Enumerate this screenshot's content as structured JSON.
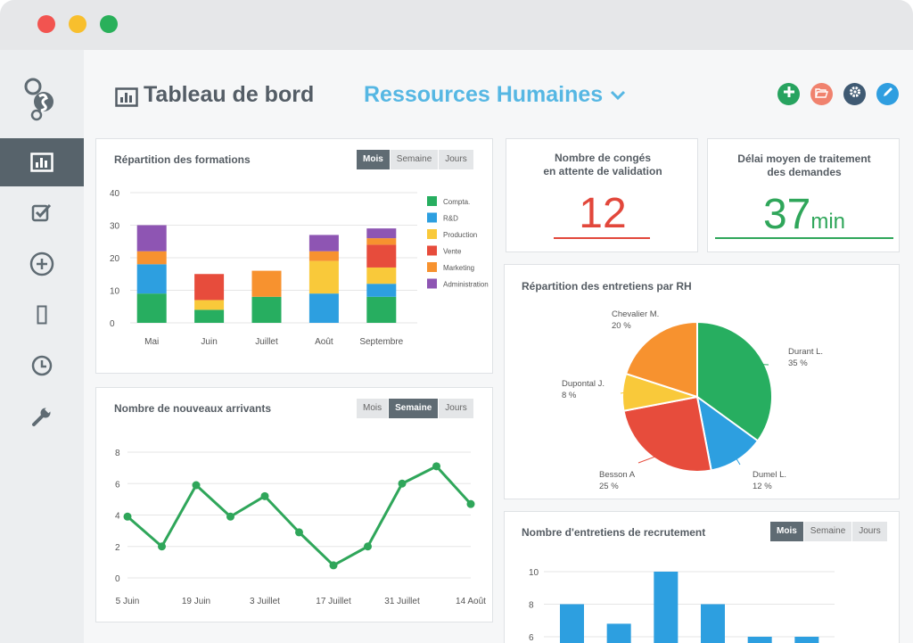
{
  "window": {
    "controls": [
      "close",
      "minimize",
      "maximize"
    ]
  },
  "sidebar": {
    "items": [
      {
        "icon": "bar-chart-icon",
        "active": true
      },
      {
        "icon": "checkbox-icon",
        "active": false
      },
      {
        "icon": "plus-circle-icon",
        "active": false
      },
      {
        "icon": "mobile-icon",
        "active": false
      },
      {
        "icon": "clock-icon",
        "active": false
      },
      {
        "icon": "wrench-icon",
        "active": false
      }
    ]
  },
  "header": {
    "title": "Tableau de bord",
    "section": "Ressources Humaines",
    "actions": [
      {
        "icon": "plus-icon",
        "color": "#27a35f"
      },
      {
        "icon": "folder-open-icon",
        "color": "#f0826e"
      },
      {
        "icon": "gear-icon",
        "color": "#3f5a73"
      },
      {
        "icon": "pencil-icon",
        "color": "#2f9ee0"
      }
    ]
  },
  "periods": {
    "month": "Mois",
    "week": "Semaine",
    "day": "Jours"
  },
  "kpis": {
    "leave_pending": {
      "label_line1": "Nombre de congés",
      "label_line2": "en attente de validation",
      "value": "12",
      "color": "#e2473b"
    },
    "processing_delay": {
      "label_line1": "Délai moyen de traitement",
      "label_line2": "des demandes",
      "value": "37",
      "unit": "min",
      "color": "#2fa65a"
    }
  },
  "colors": {
    "compta": "#27ae60",
    "rd": "#2d9fe0",
    "production": "#f9c93a",
    "vente": "#e74c3c",
    "marketing": "#f7922f",
    "administration": "#8e55b3",
    "line": "#2fa65a",
    "bar": "#2d9fe0"
  },
  "chart_data": [
    {
      "type": "bar",
      "title": "Répartition des formations",
      "selected_period": "Mois",
      "stacked": true,
      "categories": [
        "Mai",
        "Juin",
        "Juillet",
        "Août",
        "Septembre"
      ],
      "ylim": [
        0,
        40
      ],
      "yticks": [
        0,
        10,
        20,
        30,
        40
      ],
      "series": [
        {
          "name": "Compta.",
          "values": [
            9,
            4,
            8,
            0,
            8
          ]
        },
        {
          "name": "R&D",
          "values": [
            9,
            0,
            0,
            9,
            4
          ]
        },
        {
          "name": "Production",
          "values": [
            0,
            3,
            0,
            10,
            5
          ]
        },
        {
          "name": "Vente",
          "values": [
            0,
            8,
            0,
            0,
            7
          ]
        },
        {
          "name": "Marketing",
          "values": [
            4,
            0,
            8,
            3,
            2
          ]
        },
        {
          "name": "Administration",
          "values": [
            8,
            0,
            0,
            5,
            3
          ]
        }
      ],
      "grid": true,
      "legend": "right"
    },
    {
      "type": "line",
      "title": "Nombre de nouveaux arrivants",
      "selected_period": "Semaine",
      "x": [
        "5 Juin",
        "",
        "19 Juin",
        "",
        "3 Juillet",
        "",
        "17 Juillet",
        "",
        "31 Juillet",
        "",
        "14 Août"
      ],
      "xticks": [
        "5 Juin",
        "19 Juin",
        "3 Juillet",
        "17 Juillet",
        "31 Juillet",
        "14 Août"
      ],
      "values": [
        3.9,
        2.0,
        5.9,
        3.9,
        5.2,
        2.9,
        0.8,
        2.0,
        6.0,
        7.1,
        4.7
      ],
      "ylim": [
        0,
        8
      ],
      "yticks": [
        0,
        2,
        4,
        6,
        8
      ],
      "grid": true
    },
    {
      "type": "pie",
      "title": "Répartition des entretiens par RH",
      "slices": [
        {
          "label": "Durant L.",
          "value": 35,
          "color": "#27ae60"
        },
        {
          "label": "Dumel L.",
          "value": 12,
          "color": "#2d9fe0"
        },
        {
          "label": "Besson A",
          "value": 25,
          "color": "#e74c3c"
        },
        {
          "label": "Dupontal J.",
          "value": 8,
          "color": "#f9c93a"
        },
        {
          "label": "Chevalier M.",
          "value": 20,
          "color": "#f7922f"
        }
      ]
    },
    {
      "type": "bar",
      "title": "Nombre d'entretiens de recrutement",
      "selected_period": "Mois",
      "values": [
        8,
        6.8,
        10,
        8,
        6,
        6
      ],
      "ylim": [
        6,
        10
      ],
      "yticks": [
        6,
        8,
        10
      ],
      "grid": true
    }
  ]
}
